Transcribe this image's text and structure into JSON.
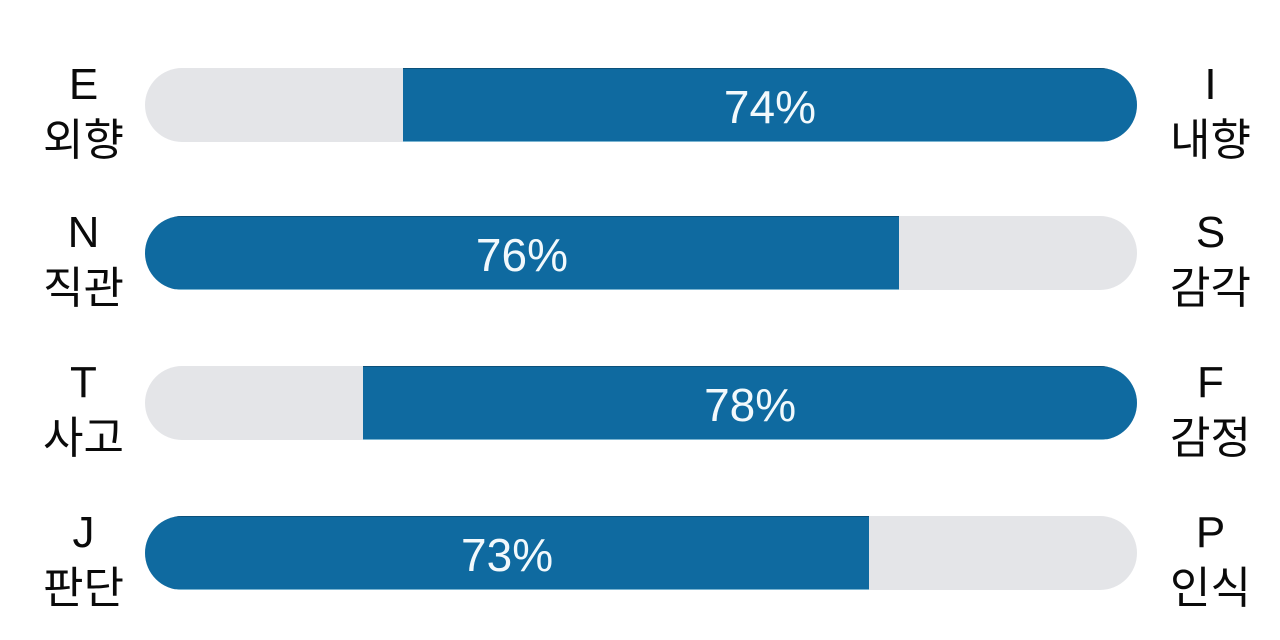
{
  "chart_data": {
    "type": "bar",
    "title": "",
    "description": "Four horizontal pill progress bars showing MBTI dichotomy percentages",
    "layout": {
      "orientation": "horizontal",
      "value_range": [
        0,
        100
      ],
      "grid": false,
      "legend": false
    },
    "colors": {
      "fill_blue": "#0f6aa0",
      "track_gray": "#e4e5e8",
      "label_text": "#0a0a0a",
      "value_text": "#f2f9fc",
      "background": "#ffffff"
    },
    "rows": [
      {
        "left_pole": {
          "letter": "E",
          "word": "외향"
        },
        "right_pole": {
          "letter": "I",
          "word": "내향"
        },
        "value": 74,
        "value_label": "74%",
        "filled_side": "right"
      },
      {
        "left_pole": {
          "letter": "N",
          "word": "직관"
        },
        "right_pole": {
          "letter": "S",
          "word": "감각"
        },
        "value": 76,
        "value_label": "76%",
        "filled_side": "left"
      },
      {
        "left_pole": {
          "letter": "T",
          "word": "사고"
        },
        "right_pole": {
          "letter": "F",
          "word": "감정"
        },
        "value": 78,
        "value_label": "78%",
        "filled_side": "right"
      },
      {
        "left_pole": {
          "letter": "J",
          "word": "판단"
        },
        "right_pole": {
          "letter": "P",
          "word": "인식"
        },
        "value": 73,
        "value_label": "73%",
        "filled_side": "left"
      }
    ]
  }
}
